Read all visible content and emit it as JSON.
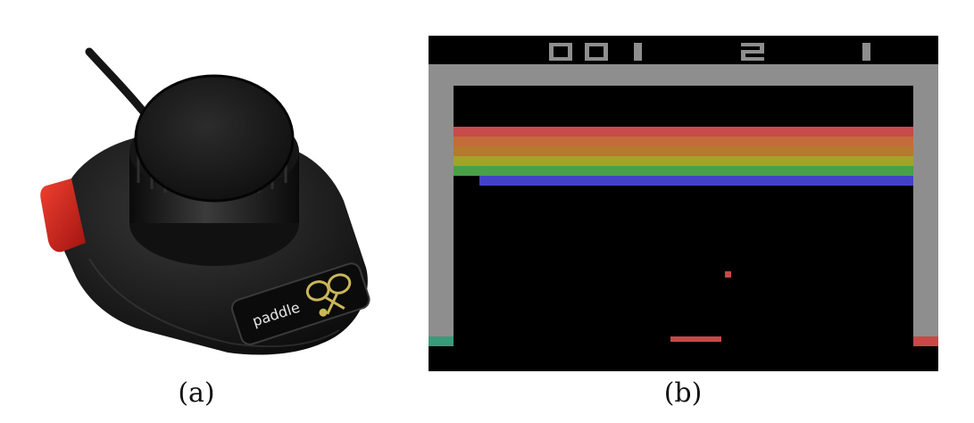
{
  "panels": {
    "a": {
      "caption": "(a)",
      "controller": {
        "logo_text": "paddle",
        "button_color": "#d9231c",
        "body_color": "#1b1b1b",
        "logo_color": "#c9b658",
        "icon": "tennis-rackets-icon"
      }
    },
    "b": {
      "caption": "(b)",
      "game": "Breakout",
      "score": "001",
      "lives": "2",
      "player": "1",
      "colors": {
        "background": "#000000",
        "walls": "#8e8e8e",
        "rows": [
          "#c84a4a",
          "#c46b3a",
          "#b47a2e",
          "#a2a22a",
          "#48a048",
          "#4242c8"
        ],
        "ball": "#c84848",
        "paddle": "#c84848",
        "left_wall_cap": "#3a9a7a",
        "right_wall_cap": "#c84848"
      }
    }
  }
}
